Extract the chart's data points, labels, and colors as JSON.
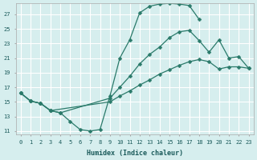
{
  "xlabel": "Humidex (Indice chaleur)",
  "bg_color": "#d6eeee",
  "grid_color": "#b8d8d8",
  "line_color": "#2a7a6a",
  "xlim": [
    -0.5,
    23.5
  ],
  "ylim": [
    10.5,
    28.5
  ],
  "xticks": [
    0,
    1,
    2,
    3,
    4,
    5,
    6,
    7,
    8,
    9,
    10,
    11,
    12,
    13,
    14,
    15,
    16,
    17,
    18,
    19,
    20,
    21,
    22,
    23
  ],
  "yticks": [
    11,
    13,
    15,
    17,
    19,
    21,
    23,
    25,
    27
  ],
  "curve1_x": [
    0,
    1,
    2,
    3,
    4,
    5,
    6,
    7,
    8,
    9,
    10,
    11,
    12,
    13,
    14,
    15,
    16,
    17,
    18
  ],
  "curve1_y": [
    16.2,
    15.1,
    14.8,
    13.8,
    13.5,
    12.3,
    11.2,
    11.0,
    11.2,
    15.8,
    21.0,
    23.5,
    27.2,
    28.1,
    28.4,
    28.5,
    28.4,
    28.2,
    26.3
  ],
  "curve2_x": [
    0,
    1,
    2,
    3,
    4,
    9,
    10,
    11,
    12,
    13,
    14,
    15,
    16,
    17,
    18,
    19,
    20,
    21,
    22,
    23
  ],
  "curve2_y": [
    16.2,
    15.1,
    14.8,
    13.8,
    13.5,
    15.5,
    17.0,
    18.5,
    20.2,
    21.5,
    22.5,
    23.8,
    24.6,
    24.8,
    23.4,
    21.8,
    23.5,
    21.0,
    21.2,
    19.6
  ],
  "curve3_x": [
    0,
    1,
    2,
    3,
    9,
    10,
    11,
    12,
    13,
    14,
    15,
    16,
    17,
    18,
    19,
    20,
    21,
    22,
    23
  ],
  "curve3_y": [
    16.2,
    15.1,
    14.8,
    13.8,
    15.0,
    15.8,
    16.5,
    17.3,
    18.0,
    18.8,
    19.4,
    20.0,
    20.5,
    20.8,
    20.5,
    19.5,
    19.8,
    19.8,
    19.6
  ]
}
